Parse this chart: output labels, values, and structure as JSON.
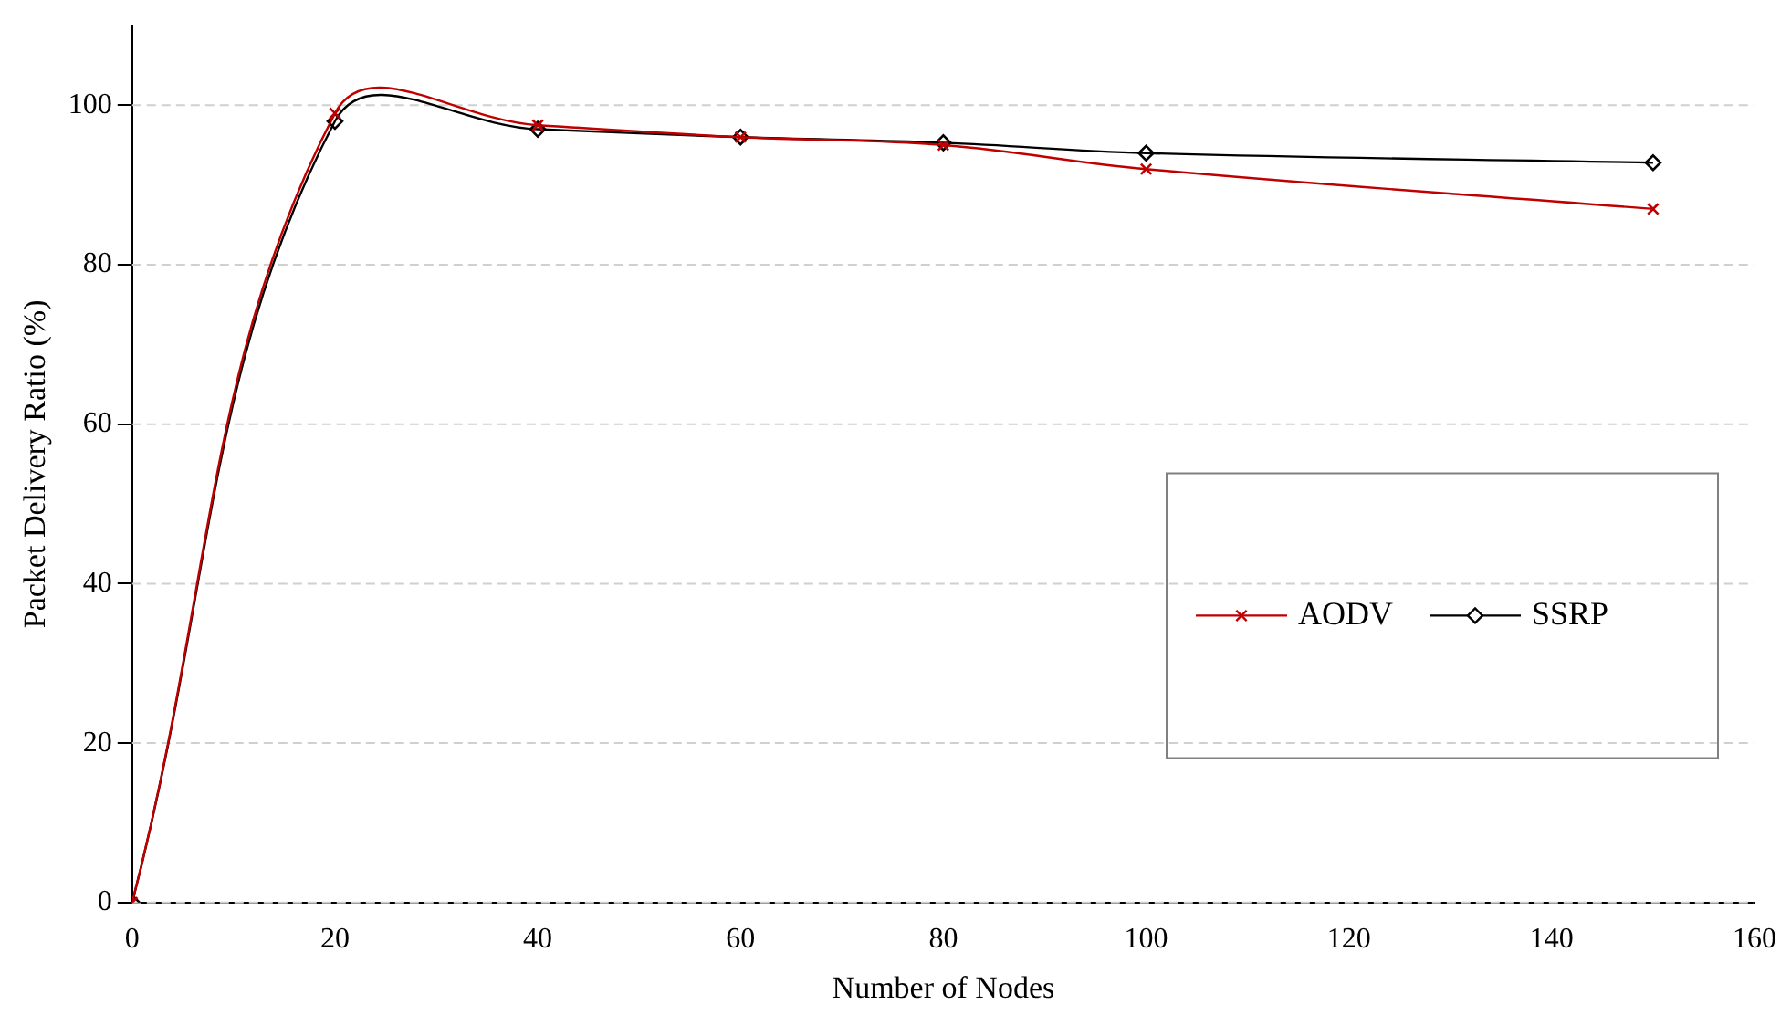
{
  "chart_data": {
    "type": "line",
    "xlabel": "Number of Nodes",
    "ylabel": "Packet Delivery Ratio (%)",
    "x": [
      0,
      20,
      40,
      60,
      80,
      100,
      150
    ],
    "series": [
      {
        "name": "AODV",
        "color": "#c00000",
        "marker": "cross",
        "values": [
          0,
          99,
          97.5,
          96,
          95,
          92,
          87
        ]
      },
      {
        "name": "SSRP",
        "color": "#000000",
        "marker": "diamond",
        "values": [
          0,
          98,
          97,
          96,
          95.3,
          94,
          92.8
        ]
      }
    ],
    "xlim": [
      0,
      160
    ],
    "xticks": [
      0,
      20,
      40,
      60,
      80,
      100,
      120,
      140,
      160
    ],
    "ylim": [
      0,
      110
    ],
    "yticks": [
      0,
      20,
      40,
      60,
      80,
      100
    ],
    "grid": "y",
    "legend": "right"
  }
}
